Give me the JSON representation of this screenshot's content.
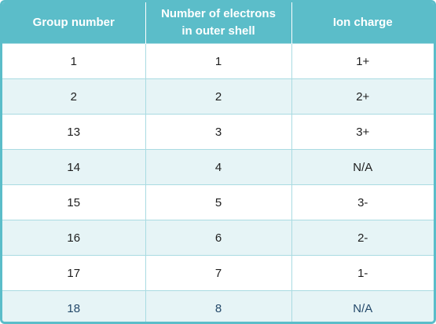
{
  "table": {
    "headers": {
      "group": "Group number",
      "electrons_line1": "Number of electrons",
      "electrons_line2": "in outer shell",
      "charge": "Ion charge"
    },
    "rows": [
      {
        "group": "1",
        "electrons": "1",
        "charge": "1+"
      },
      {
        "group": "2",
        "electrons": "2",
        "charge": "2+"
      },
      {
        "group": "13",
        "electrons": "3",
        "charge": "3+"
      },
      {
        "group": "14",
        "electrons": "4",
        "charge": "N/A"
      },
      {
        "group": "15",
        "electrons": "5",
        "charge": "3-"
      },
      {
        "group": "16",
        "electrons": "6",
        "charge": "2-"
      },
      {
        "group": "17",
        "electrons": "7",
        "charge": "1-"
      },
      {
        "group": "18",
        "electrons": "8",
        "charge": "N/A"
      }
    ]
  },
  "colors": {
    "header_bg": "#5bbdc9",
    "header_text": "#ffffff",
    "stripe_bg": "#e6f4f6",
    "grid_line": "#a9dbe2"
  }
}
